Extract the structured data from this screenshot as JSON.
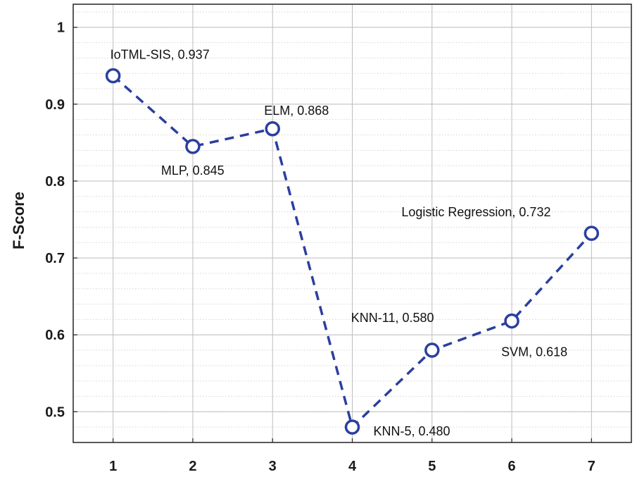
{
  "chart_data": {
    "type": "line",
    "title": "",
    "xlabel": "",
    "ylabel": "F-Score",
    "x": [
      1,
      2,
      3,
      4,
      5,
      6,
      7
    ],
    "xticks": [
      "1",
      "2",
      "3",
      "4",
      "5",
      "6",
      "7"
    ],
    "xlim": [
      0.5,
      7.5
    ],
    "ylim": [
      0.46,
      1.03
    ],
    "yticks": [
      "0.5",
      "0.6",
      "0.7",
      "0.8",
      "0.9",
      "1"
    ],
    "ytick_values": [
      0.5,
      0.6,
      0.7,
      0.8,
      0.9,
      1.0
    ],
    "grid": true,
    "series": [
      {
        "name": "F-Score",
        "color": "#2b3f9e",
        "line_style": "dashed",
        "marker": "circle",
        "values": [
          0.937,
          0.845,
          0.868,
          0.48,
          0.58,
          0.618,
          0.732
        ]
      }
    ],
    "annotations": [
      {
        "x": 1,
        "text": "IoTML-SIS, 0.937"
      },
      {
        "x": 2,
        "text": "MLP, 0.845"
      },
      {
        "x": 3,
        "text": "ELM, 0.868"
      },
      {
        "x": 4,
        "text": "KNN-5, 0.480"
      },
      {
        "x": 5,
        "text": "KNN-11, 0.580"
      },
      {
        "x": 6,
        "text": "SVM, 0.618"
      },
      {
        "x": 7,
        "text": "Logistic Regression, 0.732"
      }
    ]
  }
}
